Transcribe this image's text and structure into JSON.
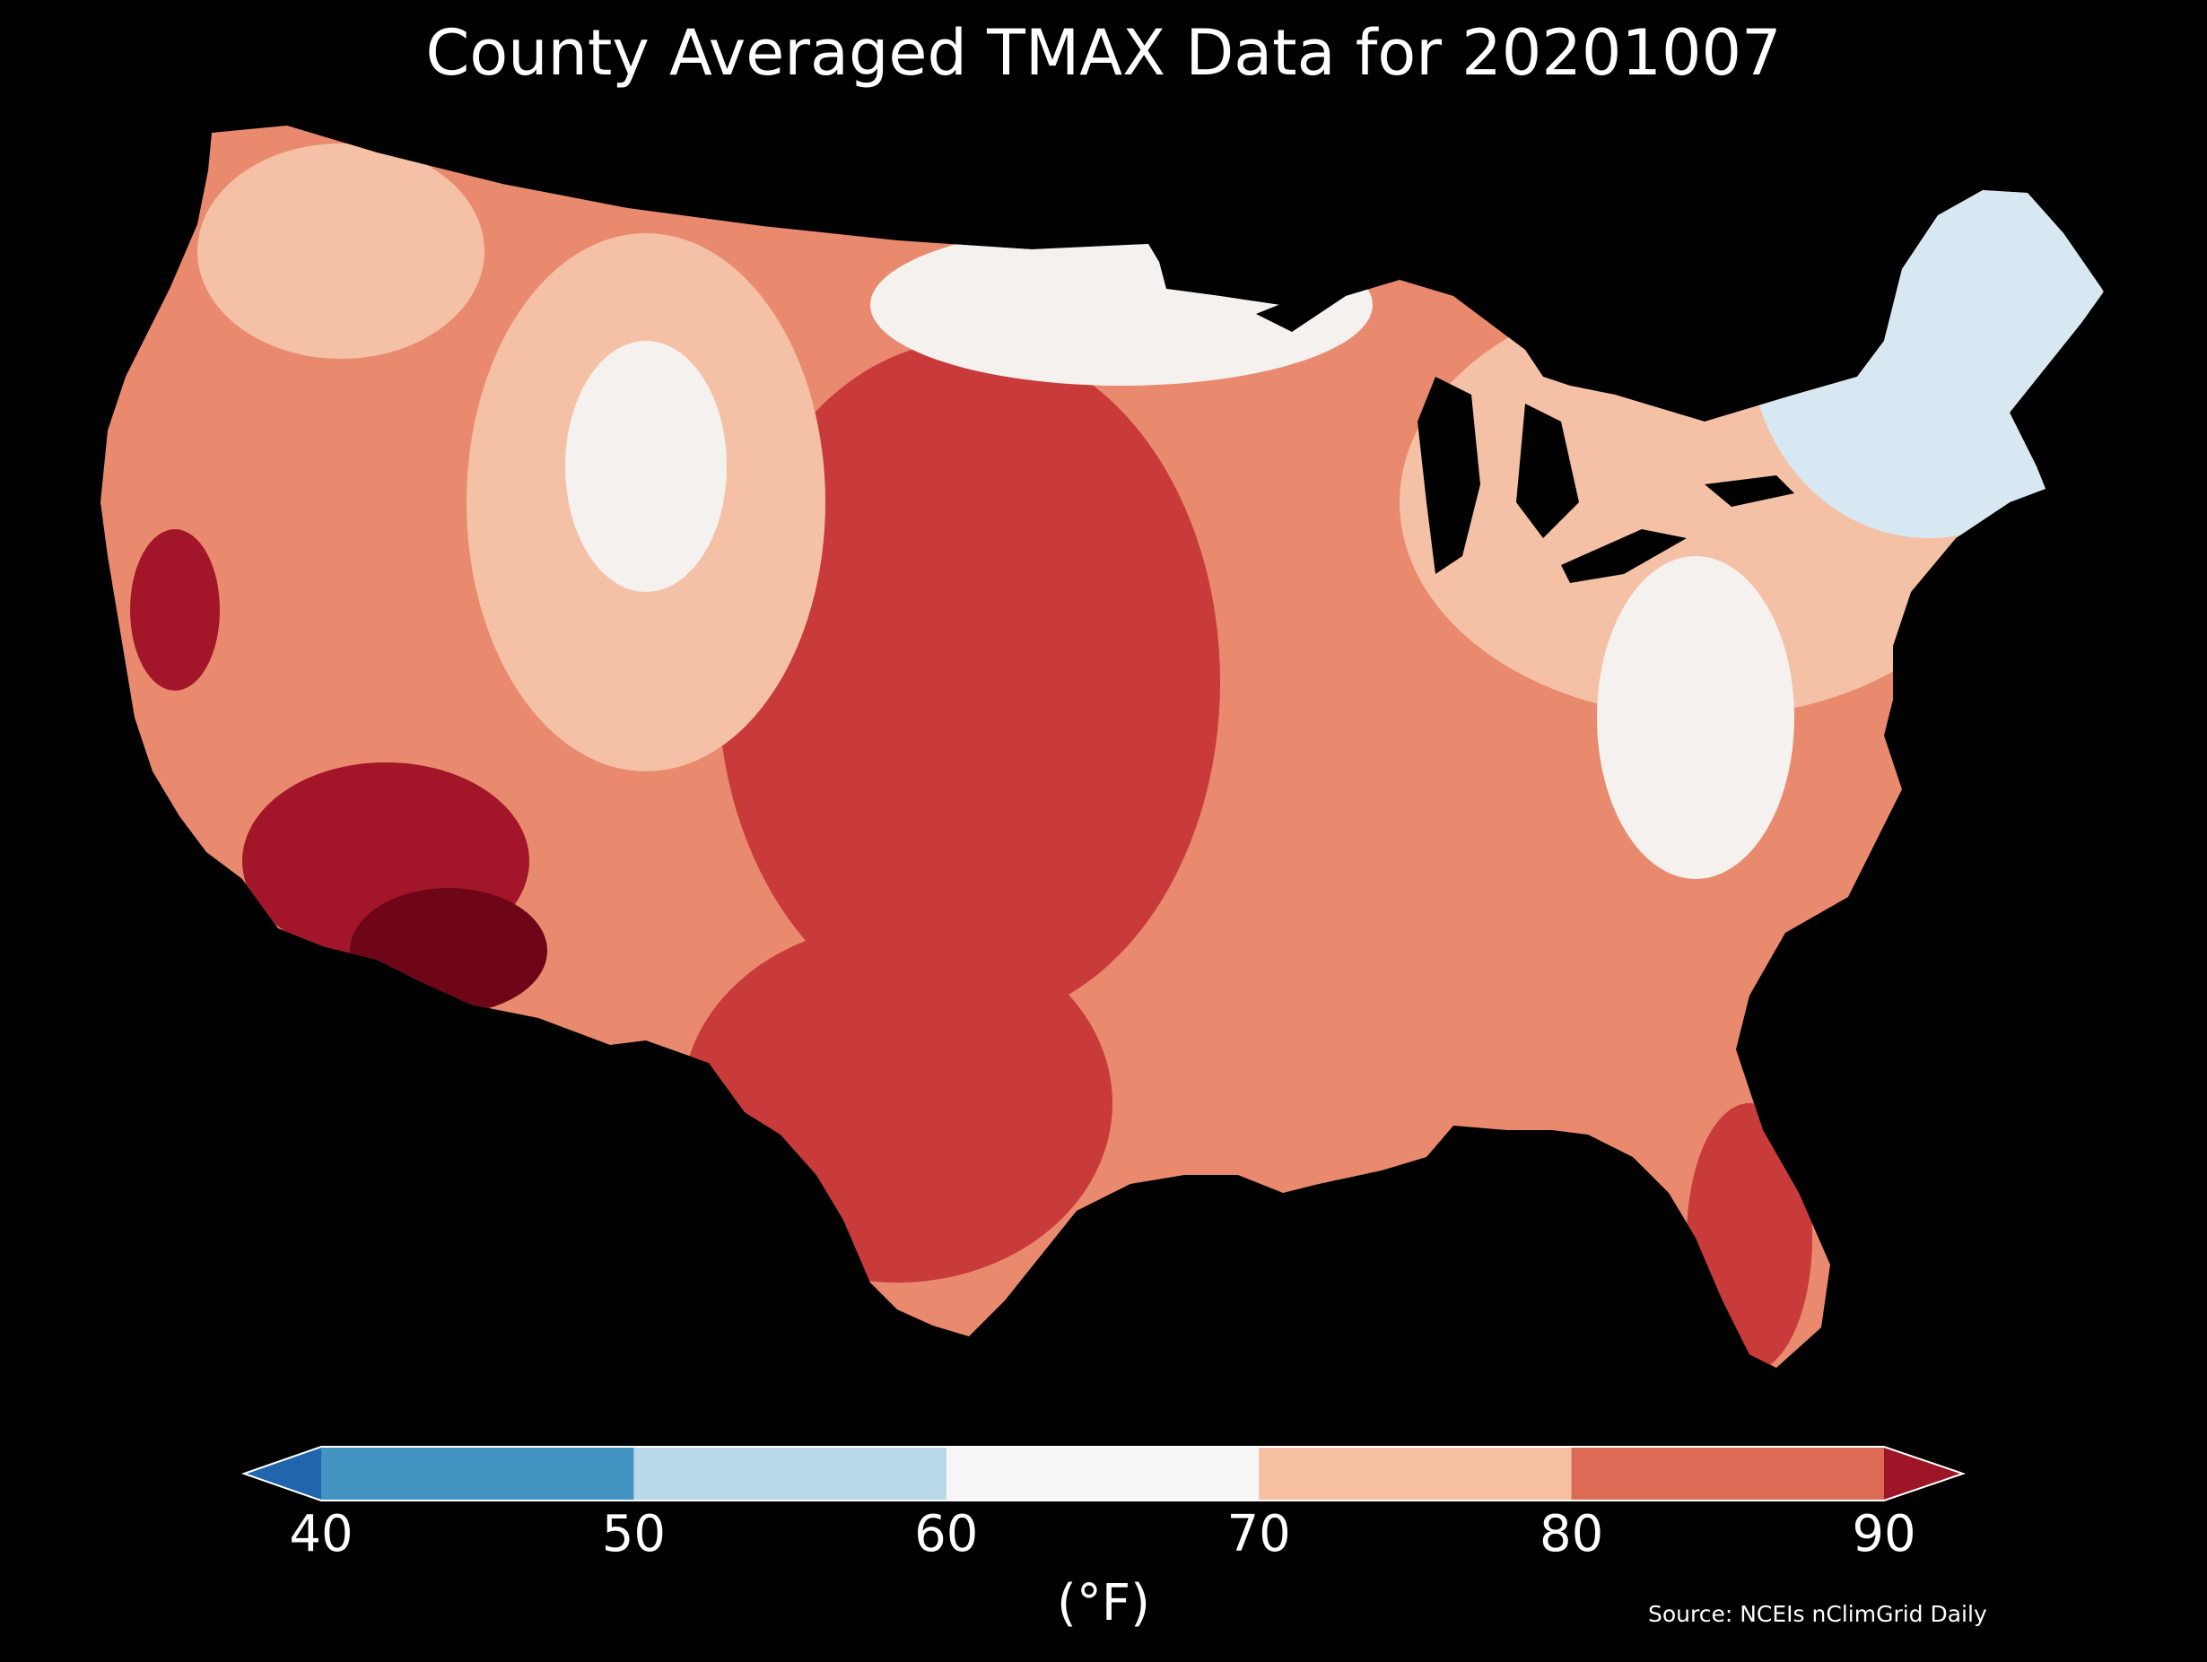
{
  "title": "County Averaged TMAX Data for 20201007",
  "colorbar": {
    "unit_label": "(°F)",
    "ticks": [
      "40",
      "50",
      "60",
      "70",
      "80",
      "90"
    ],
    "bins": [
      {
        "range": "<40",
        "color": "#2166ac"
      },
      {
        "range": "40-50",
        "color": "#4393c3"
      },
      {
        "range": "50-60",
        "color": "#b8d8ea"
      },
      {
        "range": "60-70",
        "color": "#f7f7f7"
      },
      {
        "range": "70-80",
        "color": "#f7c0a3"
      },
      {
        "range": "80-90",
        "color": "#dd6a55"
      },
      {
        "range": ">90",
        "color": "#9e1528"
      }
    ]
  },
  "source": "Source: NCEIs nClimGrid Daily",
  "map_colors": {
    "cool_northeast": "#d8e8f3",
    "neutral": "#f4f1ef",
    "warm_light": "#f4c1a6",
    "warm": "#e98a6e",
    "hot": "#c93a3b",
    "very_hot": "#a3162a",
    "extreme": "#6e0618"
  }
}
